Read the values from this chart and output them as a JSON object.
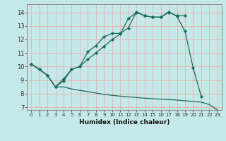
{
  "xlabel": "Humidex (Indice chaleur)",
  "xlim": [
    -0.5,
    23.5
  ],
  "ylim": [
    6.8,
    14.6
  ],
  "xticks": [
    0,
    1,
    2,
    3,
    4,
    5,
    6,
    7,
    8,
    9,
    10,
    11,
    12,
    13,
    14,
    15,
    16,
    17,
    18,
    19,
    20,
    21,
    22,
    23
  ],
  "yticks": [
    7,
    8,
    9,
    10,
    11,
    12,
    13,
    14
  ],
  "background_color": "#c5e8e8",
  "grid_color": "#e8b0b0",
  "line_color": "#1a6b5a",
  "line1_x": [
    0,
    1,
    2,
    3,
    4,
    5,
    6,
    7,
    8,
    9,
    10,
    11,
    12,
    13,
    14,
    15,
    16,
    17,
    18,
    19,
    20,
    21
  ],
  "line1_y": [
    10.2,
    9.8,
    9.35,
    8.5,
    9.1,
    9.8,
    10.0,
    11.1,
    11.55,
    12.2,
    12.45,
    12.45,
    12.85,
    14.05,
    13.75,
    13.65,
    13.65,
    14.05,
    13.7,
    12.6,
    9.9,
    7.8
  ],
  "line2_x": [
    0,
    1,
    2,
    3,
    4,
    5,
    6,
    7,
    8,
    9,
    10,
    11,
    12,
    13,
    14,
    15,
    16,
    17,
    18,
    19
  ],
  "line2_y": [
    10.2,
    9.8,
    9.35,
    8.5,
    8.95,
    9.8,
    10.0,
    10.55,
    11.0,
    11.5,
    12.0,
    12.4,
    13.55,
    14.0,
    13.75,
    13.65,
    13.65,
    14.0,
    13.75,
    13.75
  ],
  "line3_x": [
    0,
    1,
    2,
    3,
    4,
    5,
    6,
    7,
    8,
    9,
    10,
    11,
    12,
    13,
    14,
    15,
    16,
    17,
    18,
    19,
    20,
    21,
    22,
    23
  ],
  "line3_y": [
    10.2,
    9.8,
    9.35,
    8.5,
    8.5,
    8.35,
    8.25,
    8.15,
    8.05,
    7.95,
    7.88,
    7.82,
    7.77,
    7.72,
    7.67,
    7.63,
    7.6,
    7.57,
    7.53,
    7.48,
    7.43,
    7.38,
    7.2,
    6.8
  ]
}
